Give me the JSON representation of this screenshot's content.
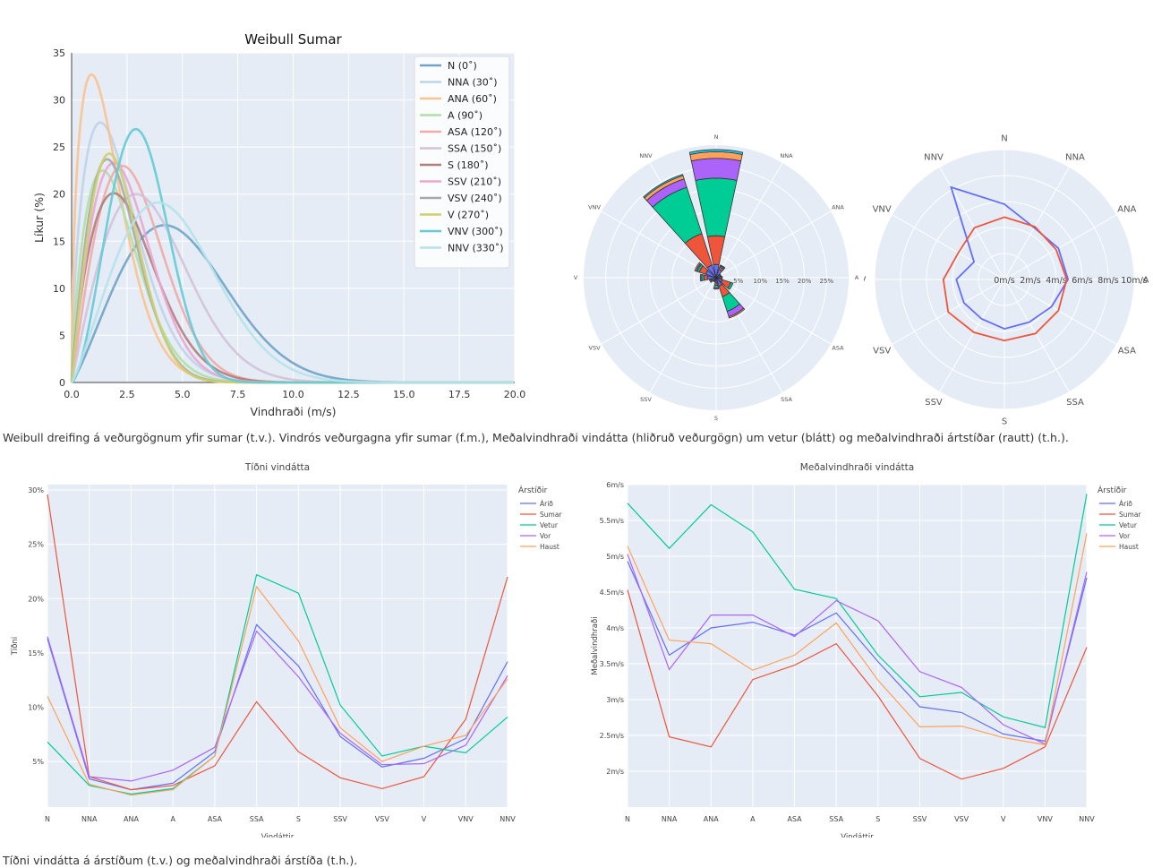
{
  "captions": {
    "top": "Weibull dreifing á veðurgögnum yfir sumar (t.v.). Vindrós veðurgagna yfir sumar (f.m.), Meðalvindhraði vindátta (hliðruð veðurgögn) um vetur (blátt) og meðalvindhraði ártstíðar (rautt) (t.h.).",
    "bottom": "Tíðni vindátta á árstíðum (t.v.) og meðalvindhraði árstíða (t.h.)."
  },
  "chart_data": [
    {
      "type": "line",
      "title": "Weibull Sumar",
      "xlabel": "Vindhraði (m/s)",
      "ylabel": "Líkur (%)",
      "xlim": [
        0,
        20
      ],
      "ylim": [
        0,
        35
      ],
      "xticks": [
        "0.0",
        "2.5",
        "5.0",
        "7.5",
        "10.0",
        "12.5",
        "15.0",
        "17.5",
        "20.0"
      ],
      "yticks": [
        "0",
        "5",
        "10",
        "15",
        "20",
        "25",
        "30",
        "35"
      ],
      "legend_position": "top-right",
      "grid": true,
      "series": [
        {
          "name": "N (0$^\\circ$)",
          "label": "N (0˚)",
          "peak_x": 4.2,
          "peak_y": 16.7,
          "shape": 2.2,
          "color": "#6fa3c9"
        },
        {
          "name": "NNA (30˚)",
          "label": "NNA (30˚)",
          "peak_x": 1.3,
          "peak_y": 27.6,
          "shape": 1.6,
          "color": "#bcd3ea"
        },
        {
          "name": "ANA (60˚)",
          "label": "ANA (60˚)",
          "peak_x": 0.9,
          "peak_y": 32.7,
          "shape": 1.5,
          "color": "#f9c28f"
        },
        {
          "name": "A (90˚)",
          "label": "A (90˚)",
          "peak_x": 1.4,
          "peak_y": 22.5,
          "shape": 1.7,
          "color": "#aee0a4"
        },
        {
          "name": "ASA (120˚)",
          "label": "ASA (120˚)",
          "peak_x": 2.3,
          "peak_y": 23.0,
          "shape": 2.0,
          "color": "#f1aaa8"
        },
        {
          "name": "SSA (150˚)",
          "label": "SSA (150˚)",
          "peak_x": 2.9,
          "peak_y": 20.0,
          "shape": 2.0,
          "color": "#d1c2d9"
        },
        {
          "name": "S (180˚)",
          "label": "S (180˚)",
          "peak_x": 1.9,
          "peak_y": 20.1,
          "shape": 1.8,
          "color": "#b07f7a"
        },
        {
          "name": "SSV (210˚)",
          "label": "SSV (210˚)",
          "peak_x": 1.9,
          "peak_y": 23.3,
          "shape": 1.9,
          "color": "#eba6d3"
        },
        {
          "name": "VSV (240˚)",
          "label": "VSV (240˚)",
          "peak_x": 1.6,
          "peak_y": 23.7,
          "shape": 1.9,
          "color": "#a8a8a8"
        },
        {
          "name": "V (270˚)",
          "label": "V (270˚)",
          "peak_x": 1.7,
          "peak_y": 24.3,
          "shape": 2.0,
          "color": "#cfcf6a"
        },
        {
          "name": "VNV (300˚)",
          "label": "VNV (300˚)",
          "peak_x": 2.9,
          "peak_y": 26.9,
          "shape": 2.6,
          "color": "#63cbd6"
        },
        {
          "name": "NNV (330˚)",
          "label": "NNV (330˚)",
          "peak_x": 3.9,
          "peak_y": 19.1,
          "shape": 2.2,
          "color": "#b5e2ea"
        }
      ]
    },
    {
      "type": "bar",
      "polar": true,
      "title": "",
      "directions": [
        "N",
        "NNA",
        "ANA",
        "A",
        "ASA",
        "SSA",
        "S",
        "SSV",
        "VSV",
        "V",
        "VNV",
        "NNV"
      ],
      "radial_ticks": [
        "5%",
        "10%",
        "15%",
        "20%",
        "25%"
      ],
      "radial_max": 30,
      "segment_colors": [
        "#636efa",
        "#ef553b",
        "#00cc96",
        "#ab63fa",
        "#ffa15a",
        "#19d3f3"
      ],
      "stacks": [
        [
          3.0,
          6.5,
          13.0,
          4.5,
          1.5,
          0.5
        ],
        [
          2.0,
          0.5,
          0.3,
          0.2,
          0,
          0
        ],
        [
          1.0,
          0.2,
          0,
          0,
          0,
          0
        ],
        [
          0.7,
          0.5,
          0.2,
          0,
          0,
          0
        ],
        [
          1.5,
          2.0,
          0.5,
          0,
          0,
          0
        ],
        [
          2.0,
          2.5,
          3.5,
          1.3,
          0.3,
          0
        ],
        [
          1.2,
          0.5,
          0.6,
          0.3,
          0,
          0
        ],
        [
          0.8,
          0.2,
          0,
          0,
          0,
          0
        ],
        [
          1.0,
          0.3,
          0.3,
          0,
          0,
          0
        ],
        [
          2.0,
          0.8,
          0.5,
          0.3,
          0,
          0
        ],
        [
          2.5,
          1.5,
          0.5,
          0.3,
          0.3,
          0
        ],
        [
          3.0,
          7.5,
          11.0,
          2.0,
          0.8,
          0.3
        ]
      ]
    },
    {
      "type": "line",
      "polar": true,
      "title": "",
      "directions": [
        "N",
        "NNA",
        "ANA",
        "A",
        "ASA",
        "SSA",
        "S",
        "SSV",
        "VSV",
        "V",
        "VNV",
        "NNV"
      ],
      "radial_ticks": [
        "0m/s",
        "2m/s",
        "4m/s",
        "6m/s",
        "8m/s",
        "10m/s"
      ],
      "radial_max": 10,
      "series": [
        {
          "name": "vetur",
          "color": "#636efa",
          "values": [
            5.8,
            4.6,
            4.8,
            4.9,
            4.2,
            3.8,
            3.8,
            3.5,
            3.6,
            3.7,
            2.7,
            8.2
          ]
        },
        {
          "name": "árstíð",
          "color": "#ef553b",
          "values": [
            4.8,
            4.7,
            4.6,
            4.8,
            4.8,
            4.8,
            4.7,
            4.7,
            5.0,
            4.7,
            4.1,
            4.6
          ]
        }
      ]
    },
    {
      "type": "line",
      "title": "Tíðni vindátta",
      "xlabel": "Vindáttir",
      "ylabel": "Tíðni",
      "legend_title": "Árstíðir",
      "legend_position": "right",
      "categories": [
        "N",
        "NNA",
        "ANA",
        "A",
        "ASA",
        "SSA",
        "S",
        "SSV",
        "VSV",
        "V",
        "VNV",
        "NNV"
      ],
      "yticks": [
        "5%",
        "10%",
        "15%",
        "20%",
        "25%",
        "30%"
      ],
      "ylim": [
        0.8,
        30.5
      ],
      "series": [
        {
          "name": "Árið",
          "color": "#636efa",
          "values": [
            16.3,
            3.4,
            2.4,
            3.0,
            5.9,
            17.6,
            13.8,
            7.3,
            4.5,
            5.3,
            7.1,
            14.2
          ]
        },
        {
          "name": "Sumar",
          "color": "#ef553b",
          "values": [
            29.6,
            3.6,
            2.4,
            2.8,
            4.6,
            10.5,
            5.9,
            3.5,
            2.5,
            3.6,
            8.9,
            22.0
          ]
        },
        {
          "name": "Vetur",
          "color": "#00cc96",
          "values": [
            6.8,
            2.8,
            2.0,
            2.5,
            5.5,
            22.2,
            20.5,
            10.2,
            5.5,
            6.4,
            5.8,
            9.1
          ]
        },
        {
          "name": "Vor",
          "color": "#ab63fa",
          "values": [
            16.5,
            3.6,
            3.2,
            4.2,
            6.3,
            17.0,
            12.8,
            7.6,
            4.7,
            4.8,
            6.5,
            12.9
          ]
        },
        {
          "name": "Haust",
          "color": "#ffa15a",
          "values": [
            11.0,
            2.9,
            1.9,
            2.4,
            5.5,
            21.1,
            16.1,
            8.1,
            5.0,
            6.4,
            7.4,
            12.6
          ]
        }
      ]
    },
    {
      "type": "line",
      "title": "Meðalvindhraði vindátta",
      "xlabel": "Vindáttir",
      "ylabel": "Meðalvindhraði",
      "legend_title": "Árstíðir",
      "legend_position": "right",
      "categories": [
        "N",
        "NNA",
        "ANA",
        "A",
        "ASA",
        "SSA",
        "S",
        "SSV",
        "VSV",
        "V",
        "VNV",
        "NNV"
      ],
      "yticks": [
        "2m/s",
        "2.5m/s",
        "3m/s",
        "3.5m/s",
        "4m/s",
        "4.5m/s",
        "5m/s",
        "5.5m/s",
        "6m/s"
      ],
      "ylim": [
        1.5,
        6.0
      ],
      "series": [
        {
          "name": "Árið",
          "color": "#636efa",
          "values": [
            4.93,
            3.62,
            4.0,
            4.08,
            3.9,
            4.21,
            3.53,
            2.9,
            2.82,
            2.52,
            2.42,
            4.7
          ]
        },
        {
          "name": "Sumar",
          "color": "#ef553b",
          "values": [
            4.53,
            2.48,
            2.34,
            3.28,
            3.48,
            3.78,
            3.05,
            2.18,
            1.89,
            2.04,
            2.34,
            3.73
          ]
        },
        {
          "name": "Vetur",
          "color": "#00cc96",
          "values": [
            5.74,
            5.11,
            5.72,
            5.34,
            4.54,
            4.41,
            3.62,
            3.04,
            3.1,
            2.76,
            2.61,
            5.87
          ]
        },
        {
          "name": "Vor",
          "color": "#ab63fa",
          "values": [
            5.03,
            3.42,
            4.18,
            4.18,
            3.88,
            4.38,
            4.1,
            3.39,
            3.17,
            2.65,
            2.38,
            4.78
          ]
        },
        {
          "name": "Haust",
          "color": "#ffa15a",
          "values": [
            5.14,
            3.83,
            3.78,
            3.41,
            3.62,
            4.07,
            3.27,
            2.62,
            2.63,
            2.47,
            2.37,
            5.32
          ]
        }
      ]
    }
  ]
}
